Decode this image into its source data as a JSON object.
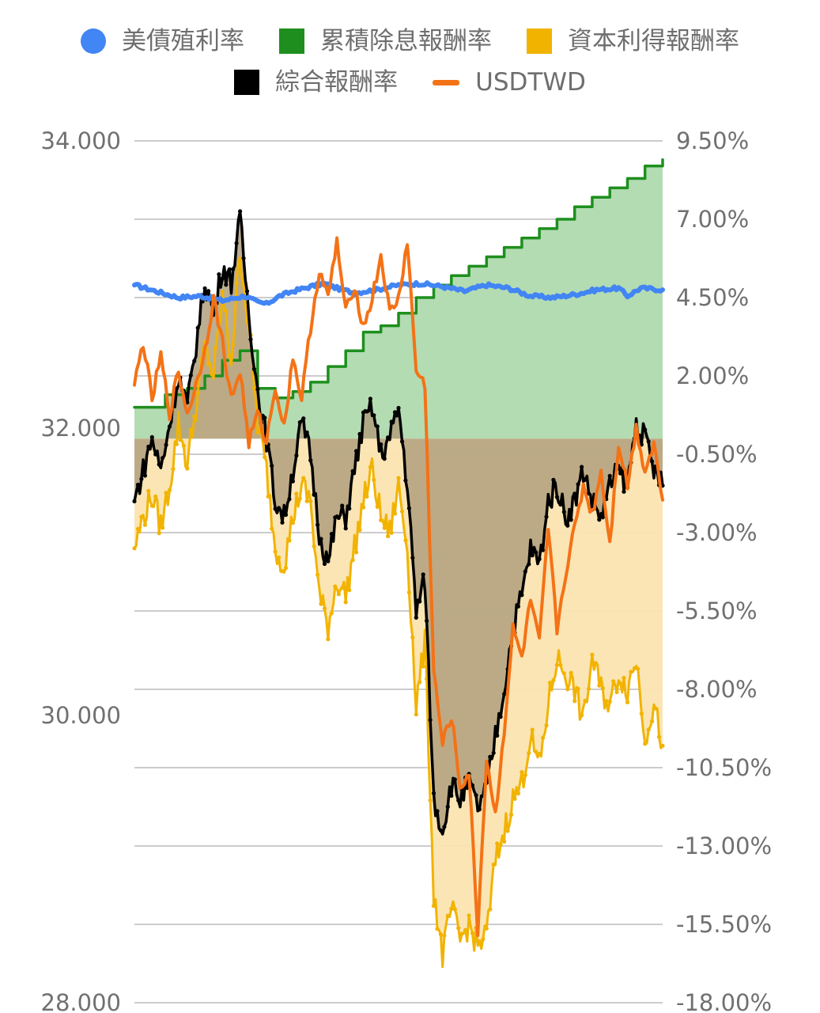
{
  "legend": {
    "yield": "美債殖利率",
    "dividend": "累積除息報酬率",
    "capital": "資本利得報酬率",
    "total": "綜合報酬率",
    "fx": "USDTWD"
  },
  "colors": {
    "yield": "#4285f4",
    "dividend": "#1e8f1e",
    "dividend_fill": "#b3dcb3",
    "capital": "#f2b300",
    "capital_fill": "#fbe4b0",
    "total": "#000000",
    "total_fill": "#b0a07e",
    "fx": "#f47216",
    "grid": "#cccccc"
  },
  "chart_data": {
    "type": "line",
    "title": "",
    "left_axis": {
      "range": [
        28,
        34
      ],
      "ticks": [
        "34.000",
        "32.000",
        "30.000",
        "28.000"
      ]
    },
    "right_axis": {
      "range": [
        -18,
        9.5
      ],
      "ticks": [
        "9.50%",
        "7.00%",
        "4.50%",
        "2.00%",
        "-0.50%",
        "-3.00%",
        "-5.50%",
        "-8.00%",
        "-10.50%",
        "-13.00%",
        "-15.50%",
        "-18.00%"
      ]
    },
    "grid": true,
    "legend_position": "top",
    "x_count": 121,
    "series": [
      {
        "name": "美債殖利率",
        "axis": "right",
        "style": "line",
        "points": [
          [
            0,
            4.9
          ],
          [
            5,
            4.7
          ],
          [
            10,
            4.5
          ],
          [
            15,
            4.55
          ],
          [
            20,
            4.4
          ],
          [
            25,
            4.55
          ],
          [
            28,
            4.35
          ],
          [
            30,
            4.3
          ],
          [
            33,
            4.55
          ],
          [
            36,
            4.7
          ],
          [
            40,
            4.85
          ],
          [
            43,
            4.95
          ],
          [
            46,
            4.8
          ],
          [
            50,
            4.65
          ],
          [
            55,
            4.75
          ],
          [
            60,
            4.9
          ],
          [
            65,
            4.95
          ],
          [
            70,
            4.85
          ],
          [
            75,
            4.7
          ],
          [
            80,
            4.9
          ],
          [
            85,
            4.8
          ],
          [
            90,
            4.55
          ],
          [
            95,
            4.5
          ],
          [
            100,
            4.6
          ],
          [
            105,
            4.75
          ],
          [
            110,
            4.8
          ],
          [
            112,
            4.55
          ],
          [
            115,
            4.8
          ],
          [
            120,
            4.75
          ]
        ]
      },
      {
        "name": "累積除息報酬率",
        "axis": "right",
        "style": "area-step",
        "points": [
          [
            0,
            1.0
          ],
          [
            6,
            1.0
          ],
          [
            7,
            1.4
          ],
          [
            12,
            1.6
          ],
          [
            16,
            2.0
          ],
          [
            20,
            2.5
          ],
          [
            24,
            2.8
          ],
          [
            28,
            1.6
          ],
          [
            32,
            1.3
          ],
          [
            36,
            1.5
          ],
          [
            40,
            1.8
          ],
          [
            44,
            2.3
          ],
          [
            48,
            2.8
          ],
          [
            52,
            3.4
          ],
          [
            56,
            3.6
          ],
          [
            60,
            4.0
          ],
          [
            64,
            4.5
          ],
          [
            68,
            4.9
          ],
          [
            72,
            5.2
          ],
          [
            76,
            5.5
          ],
          [
            80,
            5.8
          ],
          [
            84,
            6.1
          ],
          [
            88,
            6.4
          ],
          [
            92,
            6.7
          ],
          [
            96,
            7.0
          ],
          [
            100,
            7.4
          ],
          [
            104,
            7.7
          ],
          [
            108,
            8.0
          ],
          [
            112,
            8.3
          ],
          [
            116,
            8.7
          ],
          [
            120,
            8.9
          ]
        ]
      },
      {
        "name": "資本利得報酬率",
        "axis": "right",
        "style": "area",
        "points": [
          [
            0,
            -3.5
          ],
          [
            2,
            -2.5
          ],
          [
            4,
            -1.8
          ],
          [
            6,
            -2.8
          ],
          [
            8,
            -1.5
          ],
          [
            10,
            0.5
          ],
          [
            12,
            -0.8
          ],
          [
            14,
            1.0
          ],
          [
            16,
            3.0
          ],
          [
            18,
            2.0
          ],
          [
            20,
            4.5
          ],
          [
            22,
            2.5
          ],
          [
            24,
            6.0
          ],
          [
            26,
            3.5
          ],
          [
            28,
            0.5
          ],
          [
            30,
            -1.0
          ],
          [
            32,
            -3.5
          ],
          [
            34,
            -4.0
          ],
          [
            36,
            -2.5
          ],
          [
            38,
            -1.5
          ],
          [
            40,
            -2.0
          ],
          [
            42,
            -5.0
          ],
          [
            44,
            -6.0
          ],
          [
            46,
            -4.5
          ],
          [
            48,
            -5.0
          ],
          [
            50,
            -3.5
          ],
          [
            52,
            -2.0
          ],
          [
            54,
            -1.0
          ],
          [
            56,
            -2.5
          ],
          [
            58,
            -3.0
          ],
          [
            60,
            -1.5
          ],
          [
            62,
            -3.5
          ],
          [
            64,
            -8.5
          ],
          [
            66,
            -6.5
          ],
          [
            68,
            -14.5
          ],
          [
            70,
            -16.5
          ],
          [
            72,
            -15.0
          ],
          [
            74,
            -16.0
          ],
          [
            76,
            -15.5
          ],
          [
            78,
            -16.2
          ],
          [
            80,
            -15.8
          ],
          [
            82,
            -13.5
          ],
          [
            84,
            -12.5
          ],
          [
            86,
            -11.5
          ],
          [
            88,
            -11.0
          ],
          [
            90,
            -9.5
          ],
          [
            92,
            -10.5
          ],
          [
            94,
            -8.5
          ],
          [
            96,
            -7.0
          ],
          [
            98,
            -7.5
          ],
          [
            100,
            -8.0
          ],
          [
            102,
            -9.0
          ],
          [
            104,
            -7.0
          ],
          [
            106,
            -8.0
          ],
          [
            108,
            -8.5
          ],
          [
            110,
            -7.5
          ],
          [
            112,
            -8.0
          ],
          [
            114,
            -7.0
          ],
          [
            116,
            -9.5
          ],
          [
            118,
            -8.5
          ],
          [
            120,
            -9.8
          ]
        ]
      },
      {
        "name": "綜合報酬率",
        "axis": "right",
        "style": "area",
        "points": [
          [
            0,
            -2.0
          ],
          [
            2,
            -1.0
          ],
          [
            4,
            0.0
          ],
          [
            6,
            -1.0
          ],
          [
            8,
            0.5
          ],
          [
            10,
            2.0
          ],
          [
            12,
            1.0
          ],
          [
            14,
            3.0
          ],
          [
            16,
            5.0
          ],
          [
            18,
            4.0
          ],
          [
            20,
            5.5
          ],
          [
            22,
            5.0
          ],
          [
            24,
            7.0
          ],
          [
            26,
            4.0
          ],
          [
            28,
            1.5
          ],
          [
            30,
            0.0
          ],
          [
            32,
            -2.0
          ],
          [
            34,
            -2.5
          ],
          [
            36,
            -1.0
          ],
          [
            38,
            0.5
          ],
          [
            40,
            -0.5
          ],
          [
            42,
            -3.0
          ],
          [
            44,
            -4.0
          ],
          [
            46,
            -2.5
          ],
          [
            48,
            -2.5
          ],
          [
            50,
            -1.0
          ],
          [
            52,
            0.5
          ],
          [
            54,
            1.0
          ],
          [
            56,
            -0.5
          ],
          [
            58,
            0.0
          ],
          [
            60,
            1.0
          ],
          [
            62,
            -1.5
          ],
          [
            64,
            -5.5
          ],
          [
            66,
            -4.5
          ],
          [
            68,
            -11.5
          ],
          [
            70,
            -12.5
          ],
          [
            72,
            -11.0
          ],
          [
            74,
            -11.5
          ],
          [
            76,
            -11.0
          ],
          [
            78,
            -11.8
          ],
          [
            80,
            -11.2
          ],
          [
            82,
            -9.5
          ],
          [
            84,
            -8.0
          ],
          [
            86,
            -6.0
          ],
          [
            88,
            -5.0
          ],
          [
            90,
            -3.5
          ],
          [
            92,
            -4.0
          ],
          [
            94,
            -2.0
          ],
          [
            96,
            -1.5
          ],
          [
            98,
            -2.5
          ],
          [
            100,
            -2.0
          ],
          [
            102,
            -1.0
          ],
          [
            104,
            -2.0
          ],
          [
            106,
            -2.5
          ],
          [
            108,
            -1.5
          ],
          [
            110,
            -1.0
          ],
          [
            112,
            -1.5
          ],
          [
            114,
            0.5
          ],
          [
            116,
            0.0
          ],
          [
            118,
            -1.0
          ],
          [
            120,
            -1.5
          ]
        ]
      },
      {
        "name": "USDTWD",
        "axis": "left",
        "style": "line",
        "points": [
          [
            0,
            32.3
          ],
          [
            2,
            32.6
          ],
          [
            4,
            32.2
          ],
          [
            6,
            32.5
          ],
          [
            8,
            32.1
          ],
          [
            10,
            32.4
          ],
          [
            12,
            32.1
          ],
          [
            14,
            32.3
          ],
          [
            16,
            32.55
          ],
          [
            18,
            32.9
          ],
          [
            20,
            32.6
          ],
          [
            22,
            32.2
          ],
          [
            24,
            32.4
          ],
          [
            26,
            31.9
          ],
          [
            28,
            32.1
          ],
          [
            30,
            31.9
          ],
          [
            32,
            32.3
          ],
          [
            34,
            32.0
          ],
          [
            36,
            32.5
          ],
          [
            38,
            32.2
          ],
          [
            40,
            32.7
          ],
          [
            42,
            33.1
          ],
          [
            44,
            32.9
          ],
          [
            46,
            33.3
          ],
          [
            48,
            32.8
          ],
          [
            50,
            33.0
          ],
          [
            52,
            32.7
          ],
          [
            54,
            32.9
          ],
          [
            56,
            33.2
          ],
          [
            58,
            32.8
          ],
          [
            60,
            32.9
          ],
          [
            62,
            33.3
          ],
          [
            64,
            32.4
          ],
          [
            66,
            32.3
          ],
          [
            68,
            30.3
          ],
          [
            70,
            29.8
          ],
          [
            72,
            30.0
          ],
          [
            74,
            29.5
          ],
          [
            76,
            29.6
          ],
          [
            78,
            28.5
          ],
          [
            80,
            29.7
          ],
          [
            82,
            29.3
          ],
          [
            84,
            29.9
          ],
          [
            86,
            30.6
          ],
          [
            88,
            30.4
          ],
          [
            90,
            30.8
          ],
          [
            92,
            30.5
          ],
          [
            94,
            31.3
          ],
          [
            96,
            30.6
          ],
          [
            98,
            31.0
          ],
          [
            100,
            31.3
          ],
          [
            102,
            31.6
          ],
          [
            104,
            31.4
          ],
          [
            106,
            31.7
          ],
          [
            108,
            31.2
          ],
          [
            110,
            31.9
          ],
          [
            112,
            31.6
          ],
          [
            114,
            32.0
          ],
          [
            116,
            31.7
          ],
          [
            118,
            31.9
          ],
          [
            120,
            31.5
          ]
        ]
      }
    ]
  }
}
